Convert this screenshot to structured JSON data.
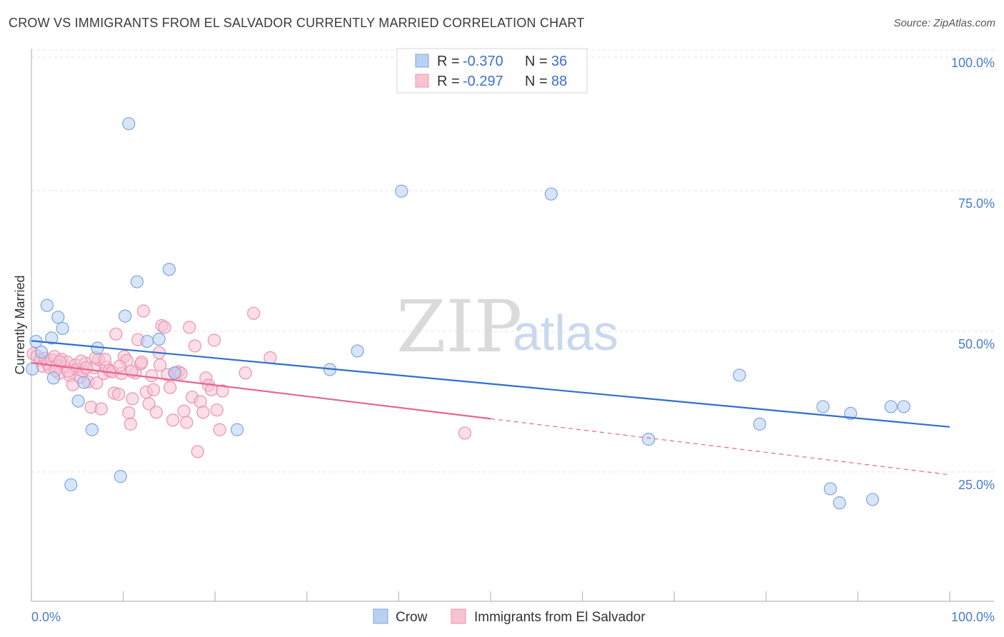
{
  "header": {
    "title": "CROW VS IMMIGRANTS FROM EL SALVADOR CURRENTLY MARRIED CORRELATION CHART",
    "source": "Source: ZipAtlas.com"
  },
  "watermark": {
    "zip": "ZIP",
    "atlas": "atlas"
  },
  "legend": {
    "r_label": "R =",
    "n_label": "N =",
    "rows": [
      {
        "r": "-0.370",
        "n": "36"
      },
      {
        "r": "-0.297",
        "n": "88"
      }
    ]
  },
  "bottom_legend": {
    "series1": "Crow",
    "series2": "Immigrants from El Salvador"
  },
  "colors": {
    "crow_fill": "#b8d0f2",
    "crow_stroke": "#7da6dd",
    "crow_line": "#2f6fd0",
    "salv_fill": "#f7c3d3",
    "salv_stroke": "#e993b0",
    "salv_line": "#e8648f",
    "grid": "#e3e3e3",
    "axis": "#bbbbbb",
    "tick_label": "#4a7cc9"
  },
  "chart_data": {
    "type": "scatter",
    "title": "CROW VS IMMIGRANTS FROM EL SALVADOR CURRENTLY MARRIED CORRELATION CHART",
    "xlabel": "",
    "ylabel": "Currently Married",
    "xlim": [
      0,
      100
    ],
    "ylim": [
      2,
      100
    ],
    "x_tick_labels": [
      "0.0%",
      "100.0%"
    ],
    "y_ticks": [
      {
        "value": 25,
        "label": "25.0%"
      },
      {
        "value": 50,
        "label": "50.0%"
      },
      {
        "value": 75,
        "label": "75.0%"
      },
      {
        "value": 100,
        "label": "100.0%"
      }
    ],
    "series": [
      {
        "name": "Crow",
        "r": -0.37,
        "n": 36,
        "trend": {
          "x0": 0,
          "y0": 48.3,
          "x1": 100,
          "y1": 33.0,
          "solid_until": 100
        },
        "points": [
          [
            0.1,
            43.3
          ],
          [
            0.5,
            48.2
          ],
          [
            1.1,
            46.3
          ],
          [
            1.7,
            54.6
          ],
          [
            2.2,
            48.8
          ],
          [
            2.4,
            41.7
          ],
          [
            2.9,
            52.5
          ],
          [
            3.4,
            50.5
          ],
          [
            4.3,
            22.7
          ],
          [
            5.1,
            37.6
          ],
          [
            5.7,
            40.9
          ],
          [
            6.6,
            32.5
          ],
          [
            7.2,
            47.0
          ],
          [
            9.7,
            24.2
          ],
          [
            10.2,
            52.7
          ],
          [
            10.6,
            86.9
          ],
          [
            11.5,
            58.8
          ],
          [
            12.6,
            48.2
          ],
          [
            13.9,
            48.6
          ],
          [
            15.0,
            61.0
          ],
          [
            15.6,
            42.6
          ],
          [
            22.4,
            32.5
          ],
          [
            32.5,
            43.2
          ],
          [
            35.5,
            46.5
          ],
          [
            40.3,
            74.9
          ],
          [
            56.6,
            74.4
          ],
          [
            67.2,
            30.8
          ],
          [
            77.1,
            42.2
          ],
          [
            79.3,
            33.5
          ],
          [
            86.2,
            36.6
          ],
          [
            87.0,
            22.0
          ],
          [
            88.0,
            19.5
          ],
          [
            89.2,
            35.4
          ],
          [
            91.6,
            20.1
          ],
          [
            93.6,
            36.6
          ],
          [
            95.0,
            36.6
          ]
        ]
      },
      {
        "name": "Immigrants from El Salvador",
        "r": -0.297,
        "n": 88,
        "trend": {
          "x0": 0,
          "y0": 44.4,
          "x1": 100,
          "y1": 24.5,
          "solid_until": 50
        },
        "points": [
          [
            0.2,
            46.0
          ],
          [
            0.6,
            45.6
          ],
          [
            1.0,
            44.9
          ],
          [
            1.2,
            43.8
          ],
          [
            1.5,
            45.2
          ],
          [
            1.8,
            44.2
          ],
          [
            2.0,
            43.5
          ],
          [
            2.2,
            44.9
          ],
          [
            2.5,
            45.5
          ],
          [
            2.8,
            44.0
          ],
          [
            3.0,
            42.5
          ],
          [
            3.3,
            45.0
          ],
          [
            3.6,
            43.7
          ],
          [
            3.9,
            44.5
          ],
          [
            4.2,
            42.1
          ],
          [
            4.5,
            40.5
          ],
          [
            4.8,
            44.0
          ],
          [
            5.0,
            43.2
          ],
          [
            5.3,
            41.8
          ],
          [
            5.6,
            42.9
          ],
          [
            5.9,
            44.3
          ],
          [
            6.2,
            41.0
          ],
          [
            6.5,
            36.5
          ],
          [
            6.8,
            43.5
          ],
          [
            7.1,
            40.8
          ],
          [
            7.3,
            45.0
          ],
          [
            7.6,
            36.2
          ],
          [
            7.9,
            42.5
          ],
          [
            8.2,
            43.6
          ],
          [
            8.5,
            43.0
          ],
          [
            8.8,
            42.8
          ],
          [
            9.0,
            39.0
          ],
          [
            9.2,
            49.5
          ],
          [
            9.5,
            38.8
          ],
          [
            9.8,
            42.5
          ],
          [
            10.1,
            45.5
          ],
          [
            10.4,
            44.8
          ],
          [
            10.6,
            35.5
          ],
          [
            10.8,
            33.5
          ],
          [
            11.0,
            38.0
          ],
          [
            11.3,
            42.6
          ],
          [
            11.6,
            48.5
          ],
          [
            11.9,
            44.2
          ],
          [
            12.2,
            53.6
          ],
          [
            12.5,
            39.2
          ],
          [
            12.8,
            37.1
          ],
          [
            13.1,
            42.1
          ],
          [
            13.3,
            39.6
          ],
          [
            13.6,
            35.6
          ],
          [
            13.9,
            46.2
          ],
          [
            14.2,
            51.0
          ],
          [
            14.5,
            50.7
          ],
          [
            14.8,
            42.3
          ],
          [
            15.1,
            40.0
          ],
          [
            15.4,
            34.2
          ],
          [
            15.7,
            42.6
          ],
          [
            16.0,
            42.8
          ],
          [
            16.3,
            42.5
          ],
          [
            16.6,
            35.8
          ],
          [
            16.9,
            33.8
          ],
          [
            17.2,
            50.7
          ],
          [
            17.5,
            38.3
          ],
          [
            17.8,
            47.4
          ],
          [
            18.1,
            28.6
          ],
          [
            18.4,
            37.5
          ],
          [
            18.7,
            35.6
          ],
          [
            19.0,
            41.7
          ],
          [
            19.3,
            40.4
          ],
          [
            19.6,
            39.6
          ],
          [
            19.9,
            48.4
          ],
          [
            20.2,
            36.0
          ],
          [
            20.5,
            32.5
          ],
          [
            20.8,
            39.4
          ],
          [
            23.3,
            42.6
          ],
          [
            24.2,
            53.2
          ],
          [
            26.0,
            45.3
          ],
          [
            47.2,
            31.9
          ],
          [
            5.4,
            44.7
          ],
          [
            7.0,
            45.3
          ],
          [
            6.0,
            43.5
          ],
          [
            3.1,
            44.6
          ],
          [
            2.6,
            43.0
          ],
          [
            12.0,
            44.5
          ],
          [
            9.6,
            43.8
          ],
          [
            10.9,
            42.9
          ],
          [
            14.0,
            44.0
          ],
          [
            4.0,
            42.9
          ],
          [
            8.0,
            45.0
          ]
        ]
      }
    ]
  }
}
